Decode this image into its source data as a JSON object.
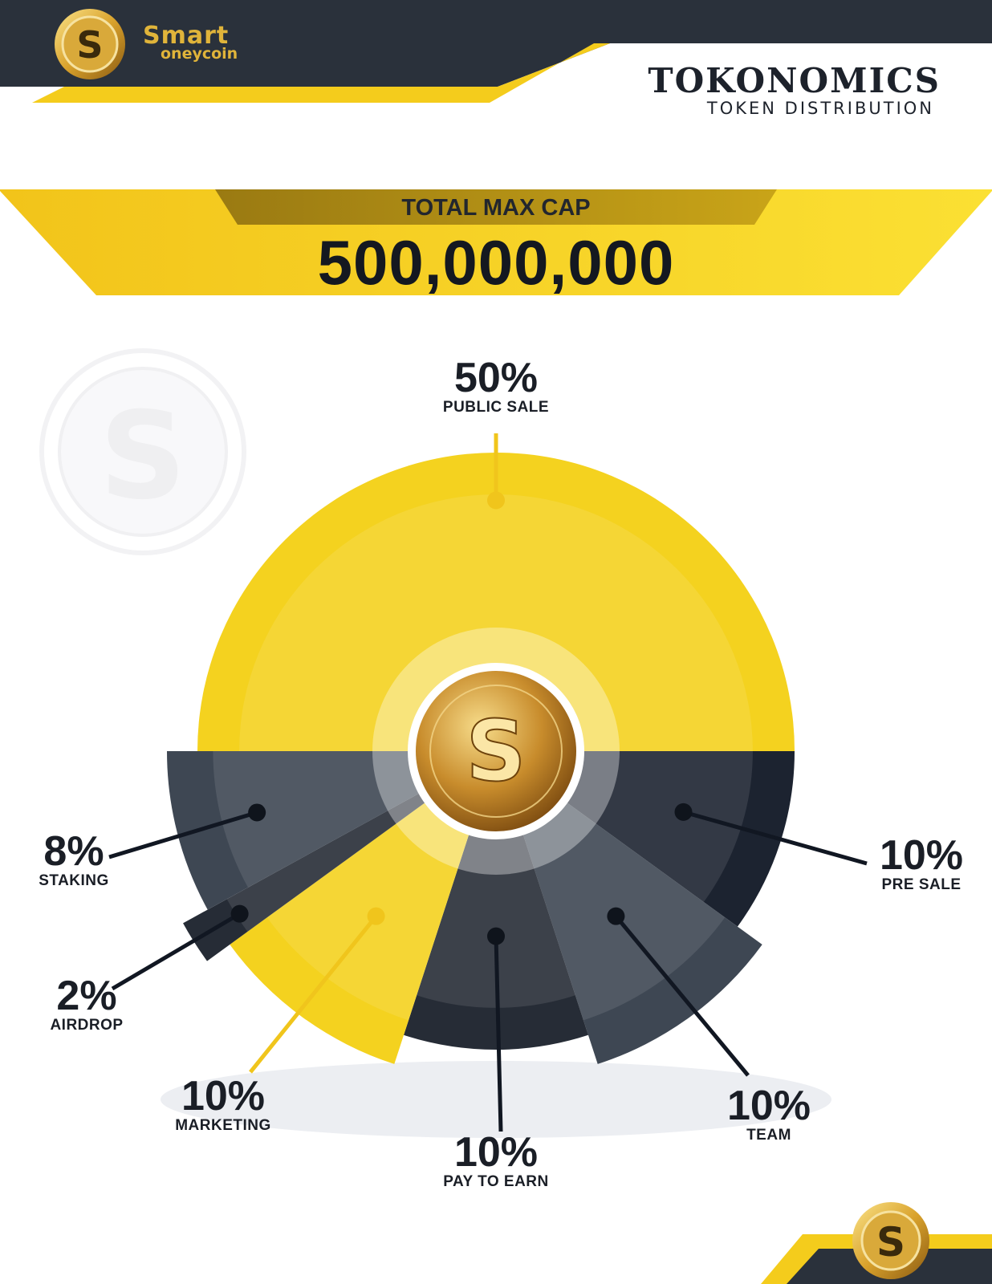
{
  "brand": {
    "line1": "Smart",
    "line2": "oneycoin"
  },
  "header": {
    "title": "TOKONOMICS",
    "subtitle": "TOKEN DISTRIBUTION"
  },
  "cap": {
    "label": "TOTAL MAX CAP",
    "value": "500,000,000"
  },
  "colors": {
    "yellow": "#f4d21f",
    "dark": "#262c36",
    "slate": "#3e4753",
    "navy": "#1c2330"
  },
  "chart_data": {
    "type": "pie",
    "title": "",
    "labels": [
      "PUBLIC SALE",
      "PRE SALE",
      "TEAM",
      "PAY TO EARN",
      "MARKETING",
      "AIRDROP",
      "STAKING"
    ],
    "values": [
      50,
      10,
      10,
      10,
      10,
      2,
      8
    ],
    "unit": "%"
  }
}
